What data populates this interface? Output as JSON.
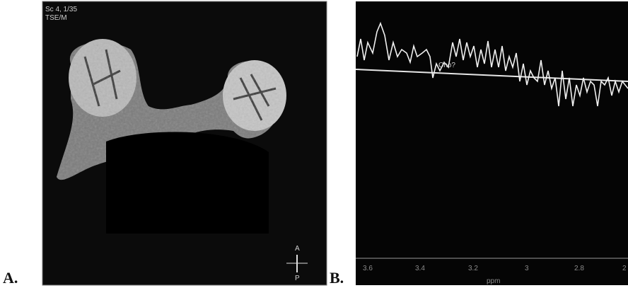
{
  "panel_a": {
    "letter": "A.",
    "overlay": [
      "Sc 4, 1/35",
      "TSE/M"
    ],
    "orientation": [
      "A",
      "P"
    ]
  },
  "panel_b": {
    "letter": "B.",
    "annotation": "Cho?",
    "tick_labels": [
      "3.6",
      "3.4",
      "3.2",
      "3",
      "2.8",
      "2"
    ],
    "axis_label": "ppm"
  }
}
